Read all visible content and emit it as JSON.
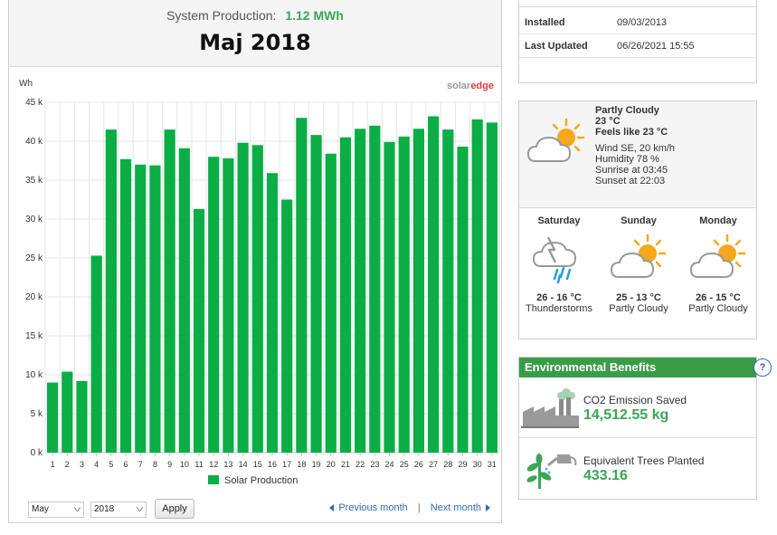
{
  "header": {
    "system_production_label": "System Production:",
    "system_production_value": "1.12 MWh",
    "month_title": "Maj 2018"
  },
  "chart_data": {
    "type": "bar",
    "ylabel": "Wh",
    "ylim": [
      0,
      45000
    ],
    "yticks": [
      0,
      5000,
      10000,
      15000,
      20000,
      25000,
      30000,
      35000,
      40000,
      45000
    ],
    "ytick_labels": [
      "0 k",
      "5 k",
      "10 k",
      "15 k",
      "20 k",
      "25 k",
      "30 k",
      "35 k",
      "40 k",
      "45 k"
    ],
    "categories": [
      "1",
      "2",
      "3",
      "4",
      "5",
      "6",
      "7",
      "8",
      "9",
      "10",
      "11",
      "12",
      "13",
      "14",
      "15",
      "16",
      "17",
      "18",
      "19",
      "20",
      "21",
      "22",
      "23",
      "24",
      "25",
      "26",
      "27",
      "28",
      "29",
      "30",
      "31"
    ],
    "series": [
      {
        "name": "Solar Production",
        "color": "#0aae45",
        "values": [
          9000,
          10400,
          9200,
          25300,
          41500,
          37700,
          37000,
          36900,
          41500,
          39100,
          31300,
          38000,
          37800,
          39800,
          39500,
          35900,
          32500,
          43000,
          40800,
          38400,
          40500,
          41600,
          42000,
          39900,
          40600,
          41600,
          43200,
          41500,
          39300,
          42800,
          42400
        ]
      }
    ],
    "legend_position": "bottom",
    "grid": true,
    "brand_logo_text": "solaredge"
  },
  "controls": {
    "month_select": "May",
    "year_select": "2018",
    "apply_label": "Apply",
    "previous_label": "Previous month",
    "separator": "|",
    "next_label": "Next month"
  },
  "info": {
    "installed_label": "Installed",
    "installed_value": "09/03/2013",
    "updated_label": "Last Updated",
    "updated_value": "06/26/2021 15:55"
  },
  "weather": {
    "now": {
      "condition": "Partly Cloudy",
      "temp": "23 °C",
      "feels_like": "Feels like 23 °C",
      "wind": "Wind SE, 20 km/h",
      "humidity": "Humidity 78 %",
      "sunrise": "Sunrise at 03:45",
      "sunset": "Sunset at 22:03",
      "icon": "partly-cloudy-icon"
    },
    "forecast": [
      {
        "day": "Saturday",
        "temp": "26 - 16 °C",
        "condition": "Thunderstorms",
        "icon": "thunderstorm-icon"
      },
      {
        "day": "Sunday",
        "temp": "25 - 13 °C",
        "condition": "Partly Cloudy",
        "icon": "partly-cloudy-icon"
      },
      {
        "day": "Monday",
        "temp": "26 - 15 °C",
        "condition": "Partly Cloudy",
        "icon": "partly-cloudy-icon"
      }
    ]
  },
  "environment": {
    "title": "Environmental Benefits",
    "help": "?",
    "co2_label": "CO2 Emission Saved",
    "co2_value": "14,512.55 kg",
    "trees_label": "Equivalent Trees Planted",
    "trees_value": "433.16"
  }
}
